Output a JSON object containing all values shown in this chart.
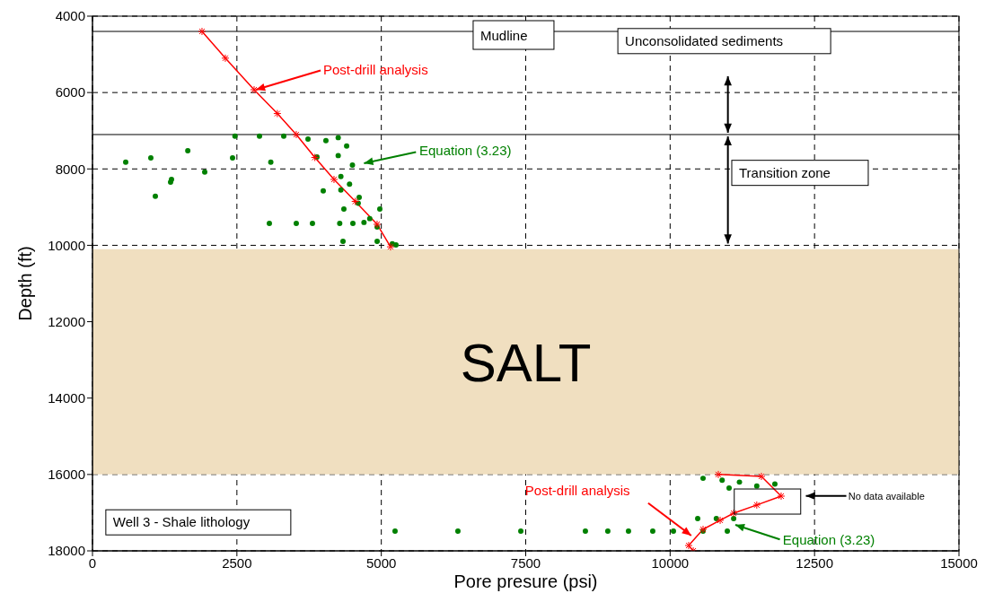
{
  "chart_data": {
    "type": "scatter",
    "xlabel": "Pore presure (psi)",
    "ylabel": "Depth (ft)",
    "xlim": [
      0,
      15000
    ],
    "xticks": [
      0,
      2500,
      5000,
      7500,
      10000,
      12500,
      15000
    ],
    "ylim": [
      18000,
      4000
    ],
    "yticks": [
      4000,
      6000,
      8000,
      10000,
      12000,
      14000,
      16000,
      18000
    ],
    "grid": true,
    "series": [
      {
        "color": "#008000",
        "marker": "circle",
        "x": [
          2467,
          2891,
          3311,
          3731,
          4254,
          4041,
          3886,
          4254,
          1650,
          1010,
          575,
          2425,
          3087,
          1943,
          1368,
          1352,
          1088,
          4300,
          3995,
          4300,
          4617,
          4974,
          4352,
          3062,
          3528,
          3808,
          4280,
          4508,
          4700,
          4928,
          4337,
          4928,
          5191,
          5254,
          4400,
          4500,
          4450,
          4600,
          4800,
          5238,
          6326,
          7415,
          8533,
          8921,
          9279,
          9699,
          10057,
          10570,
          10990,
          10477,
          10800,
          11100,
          10570,
          10900,
          11200,
          11500,
          11813,
          11021
        ],
        "values": [
          7140,
          7140,
          7140,
          7218,
          7180,
          7258,
          7688,
          7650,
          7524,
          7712,
          7822,
          7712,
          7822,
          8080,
          8275,
          8346,
          8714,
          8200,
          8573,
          8550,
          8745,
          9050,
          9050,
          9427,
          9427,
          9427,
          9427,
          9427,
          9400,
          9520,
          9896,
          9896,
          9960,
          9990,
          7400,
          7900,
          8400,
          8900,
          9300,
          17484,
          17484,
          17484,
          17484,
          17484,
          17484,
          17484,
          17484,
          17484,
          17484,
          17155,
          17155,
          17155,
          16100,
          16150,
          16200,
          16300,
          16250,
          16356
        ]
      },
      {
        "type": "line",
        "color": "#ff0000",
        "marker": "cross",
        "x": [
          1896,
          2300,
          2798,
          3200,
          3528,
          3850,
          4181,
          4550,
          4927,
          5160
        ],
        "values": [
          4400,
          5100,
          5926,
          6550,
          7100,
          7700,
          8275,
          8850,
          9450,
          10040
        ]
      },
      {
        "type": "line",
        "color": "#ff0000",
        "marker": "cross",
        "x": [
          10834,
          11580,
          11922,
          11500,
          11100,
          10866,
          10570,
          10321,
          10400
        ],
        "values": [
          16000,
          16050,
          16567,
          16800,
          17014,
          17200,
          17437,
          17860,
          18000
        ]
      }
    ],
    "ref_lines": [
      {
        "axis": "y",
        "value": 4400,
        "label": "Mudline"
      },
      {
        "axis": "y",
        "value": 7100
      }
    ],
    "bands": [
      {
        "axis": "y",
        "from": 10100,
        "to": 16000,
        "label": "SALT",
        "color": "#f0dfc0"
      }
    ],
    "annotations": [
      "Unconsolidated sediments",
      "Transition zone",
      "Well 3 - Shale lithology",
      "No data available",
      {
        "text": "Post-drill analysis",
        "x": 2798,
        "y": 5926
      },
      "Equation (3.23)",
      "Post-drill analysis",
      "Equation (3.23)"
    ]
  }
}
